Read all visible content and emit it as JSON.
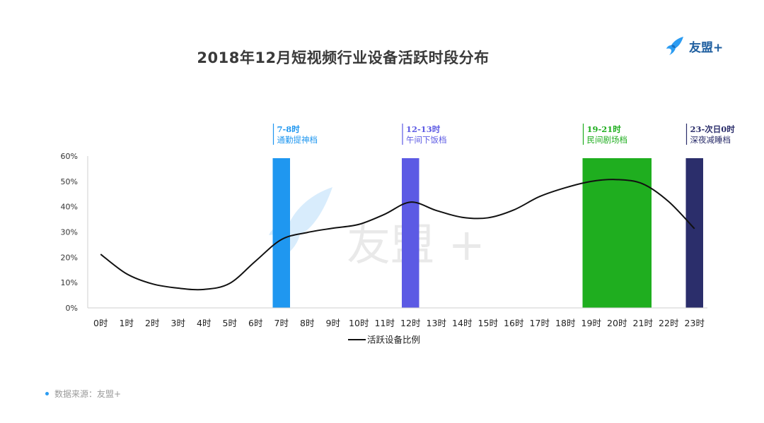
{
  "title": "2018年12月短视频行业设备活跃时段分布",
  "logo": {
    "text": "友盟+",
    "icon": "umeng-bird-logo",
    "color": "#1f5fa0",
    "watermark_text": "友盟 +"
  },
  "source": "数据来源：友盟+",
  "chart_data": {
    "type": "line",
    "title": "2018年12月短视频行业设备活跃时段分布",
    "categories": [
      "0时",
      "1时",
      "2时",
      "3时",
      "4时",
      "5时",
      "6时",
      "7时",
      "8时",
      "9时",
      "10时",
      "11时",
      "12时",
      "13时",
      "14时",
      "15时",
      "16时",
      "17时",
      "18时",
      "19时",
      "20时",
      "21时",
      "22时",
      "23时"
    ],
    "series": [
      {
        "name": "活跃设备比例",
        "color": "#111111",
        "values": [
          21.2,
          13.5,
          9.5,
          7.8,
          7.3,
          9.7,
          18.5,
          27.0,
          29.8,
          31.5,
          33.0,
          37.0,
          41.8,
          38.5,
          35.8,
          35.6,
          38.7,
          44.0,
          47.5,
          50.0,
          50.7,
          49.0,
          42.0,
          31.3
        ]
      }
    ],
    "ylim": [
      0,
      60
    ],
    "y_ticks": [
      "0%",
      "10%",
      "20%",
      "30%",
      "40%",
      "50%",
      "60%"
    ],
    "y_tick_values": [
      0,
      10,
      20,
      30,
      40,
      50,
      60
    ],
    "grid": false,
    "legend": "bottom-center",
    "bands": [
      {
        "from": "7时",
        "to": "7时",
        "range_label": "7-8时",
        "name": "通勤提神档",
        "color": "#1f97f0",
        "label_color": "#1f97f0"
      },
      {
        "from": "12时",
        "to": "12时",
        "range_label": "12-13时",
        "name": "午间下饭档",
        "color": "#5c5ae4",
        "label_color": "#5c5ae4"
      },
      {
        "from": "19时",
        "to": "21时",
        "range_label": "19-21时",
        "name": "民间剧场档",
        "color": "#1fae1f",
        "label_color": "#1fae1f"
      },
      {
        "from": "23时",
        "to": "23时",
        "range_label": "23-次日0时",
        "name": "深夜减睡档",
        "color": "#2b2e6b",
        "label_color": "#2b2e6b"
      }
    ]
  }
}
